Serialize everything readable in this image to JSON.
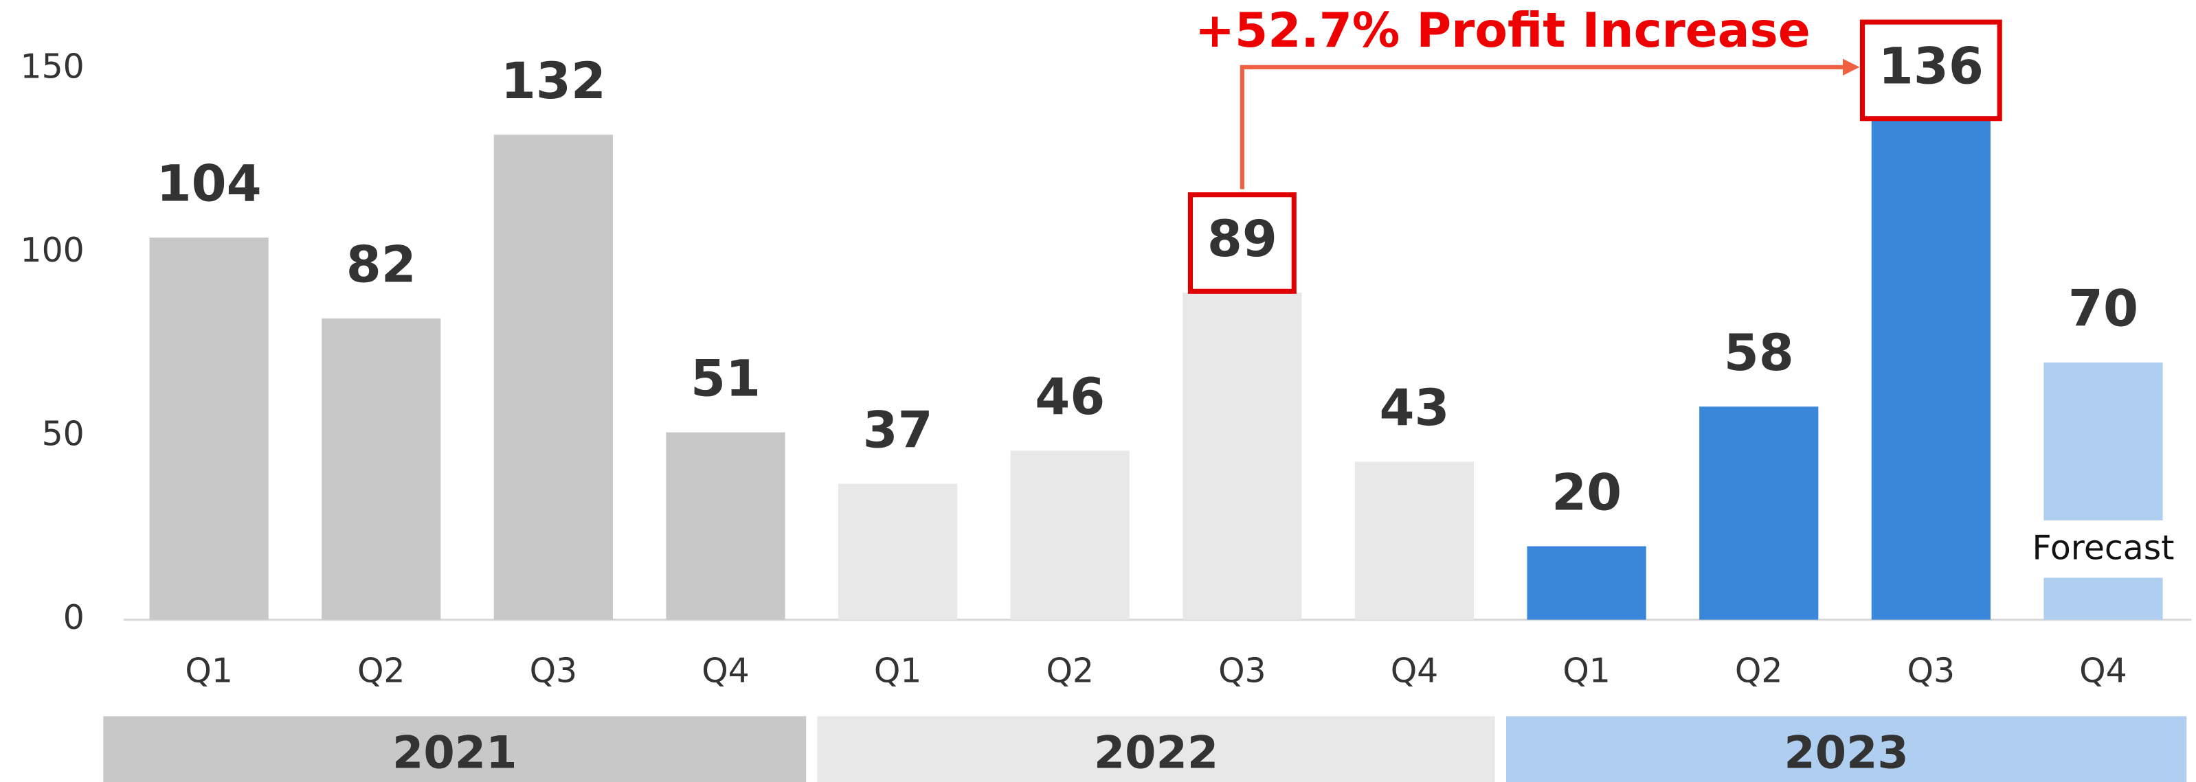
{
  "chart_data": {
    "type": "bar",
    "categories": [
      "Q1",
      "Q2",
      "Q3",
      "Q4",
      "Q1",
      "Q2",
      "Q3",
      "Q4",
      "Q1",
      "Q2",
      "Q3",
      "Q4"
    ],
    "values": [
      104,
      82,
      132,
      51,
      37,
      46,
      89,
      43,
      20,
      58,
      136,
      70
    ],
    "colors": [
      "#c8c8c8",
      "#c8c8c8",
      "#c8c8c8",
      "#c8c8c8",
      "#e8e8e8",
      "#e8e8e8",
      "#e8e8e8",
      "#e8e8e8",
      "#3a86d8",
      "#3a86d8",
      "#3a86d8",
      "#b0cff0"
    ],
    "groups": [
      {
        "label": "2021",
        "color": "#c8c8c8"
      },
      {
        "label": "2022",
        "color": "#e8e8e8"
      },
      {
        "label": "2023",
        "color": "#b0cff0"
      }
    ],
    "ylim": [
      0,
      150
    ],
    "yticks": [
      0,
      50,
      100,
      150
    ],
    "grid": false,
    "highlight": [
      6,
      10
    ],
    "comparison": {
      "text": "+52.7% Profit Increase",
      "from": 6,
      "to": 10,
      "color": "#f06040"
    },
    "forecast": {
      "text": "Forecast",
      "index": 11
    }
  }
}
